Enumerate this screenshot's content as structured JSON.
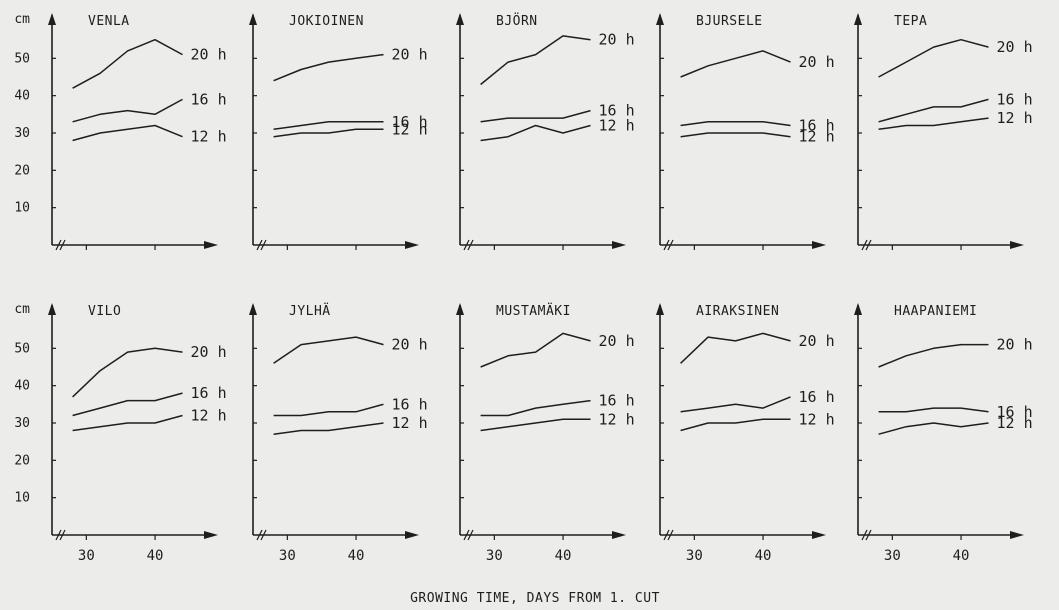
{
  "figure": {
    "xlabel": "GROWING TIME, DAYS FROM 1. CUT",
    "ylabel": "cm"
  },
  "chart_data": [
    {
      "type": "line",
      "title": "VENLA",
      "x": [
        28,
        32,
        36,
        40,
        44
      ],
      "ylim": [
        0,
        60
      ],
      "yticks": [
        10,
        20,
        30,
        40,
        50
      ],
      "xticks": [
        30,
        40
      ],
      "series": [
        {
          "name": "20 h",
          "values": [
            42,
            46,
            52,
            55,
            51
          ]
        },
        {
          "name": "16 h",
          "values": [
            33,
            35,
            36,
            35,
            39
          ]
        },
        {
          "name": "12 h",
          "values": [
            28,
            30,
            31,
            32,
            29
          ]
        }
      ]
    },
    {
      "type": "line",
      "title": "JOKIOINEN",
      "x": [
        28,
        32,
        36,
        40,
        44
      ],
      "ylim": [
        0,
        60
      ],
      "yticks": [
        10,
        20,
        30,
        40,
        50
      ],
      "xticks": [
        30,
        40
      ],
      "series": [
        {
          "name": "20 h",
          "values": [
            44,
            47,
            49,
            50,
            51
          ]
        },
        {
          "name": "16 h",
          "values": [
            31,
            32,
            33,
            33,
            33
          ]
        },
        {
          "name": "12 h",
          "values": [
            29,
            30,
            30,
            31,
            31
          ]
        }
      ]
    },
    {
      "type": "line",
      "title": "BJÖRN",
      "x": [
        28,
        32,
        36,
        40,
        44
      ],
      "ylim": [
        0,
        60
      ],
      "yticks": [
        10,
        20,
        30,
        40,
        50
      ],
      "xticks": [
        30,
        40
      ],
      "series": [
        {
          "name": "20 h",
          "values": [
            43,
            49,
            51,
            56,
            55
          ]
        },
        {
          "name": "16 h",
          "values": [
            33,
            34,
            34,
            34,
            36
          ]
        },
        {
          "name": "12 h",
          "values": [
            28,
            29,
            32,
            30,
            32
          ]
        }
      ]
    },
    {
      "type": "line",
      "title": "BJURSELE",
      "x": [
        28,
        32,
        36,
        40,
        44
      ],
      "ylim": [
        0,
        60
      ],
      "yticks": [
        10,
        20,
        30,
        40,
        50
      ],
      "xticks": [
        30,
        40
      ],
      "series": [
        {
          "name": "20 h",
          "values": [
            45,
            48,
            50,
            52,
            49
          ]
        },
        {
          "name": "16 h",
          "values": [
            32,
            33,
            33,
            33,
            32
          ]
        },
        {
          "name": "12 h",
          "values": [
            29,
            30,
            30,
            30,
            29
          ]
        }
      ]
    },
    {
      "type": "line",
      "title": "TEPA",
      "x": [
        28,
        32,
        36,
        40,
        44
      ],
      "ylim": [
        0,
        60
      ],
      "yticks": [
        10,
        20,
        30,
        40,
        50
      ],
      "xticks": [
        30,
        40
      ],
      "series": [
        {
          "name": "20 h",
          "values": [
            45,
            49,
            53,
            55,
            53
          ]
        },
        {
          "name": "16 h",
          "values": [
            33,
            35,
            37,
            37,
            39
          ]
        },
        {
          "name": "12 h",
          "values": [
            31,
            32,
            32,
            33,
            34
          ]
        }
      ]
    },
    {
      "type": "line",
      "title": "VILO",
      "x": [
        28,
        32,
        36,
        40,
        44
      ],
      "ylim": [
        0,
        60
      ],
      "yticks": [
        10,
        20,
        30,
        40,
        50
      ],
      "xticks": [
        30,
        40
      ],
      "series": [
        {
          "name": "20 h",
          "values": [
            37,
            44,
            49,
            50,
            49
          ]
        },
        {
          "name": "16 h",
          "values": [
            32,
            34,
            36,
            36,
            38
          ]
        },
        {
          "name": "12 h",
          "values": [
            28,
            29,
            30,
            30,
            32
          ]
        }
      ]
    },
    {
      "type": "line",
      "title": "JYLHÄ",
      "x": [
        28,
        32,
        36,
        40,
        44
      ],
      "ylim": [
        0,
        60
      ],
      "yticks": [
        10,
        20,
        30,
        40,
        50
      ],
      "xticks": [
        30,
        40
      ],
      "series": [
        {
          "name": "20 h",
          "values": [
            46,
            51,
            52,
            53,
            51
          ]
        },
        {
          "name": "16 h",
          "values": [
            32,
            32,
            33,
            33,
            35
          ]
        },
        {
          "name": "12 h",
          "values": [
            27,
            28,
            28,
            29,
            30
          ]
        }
      ]
    },
    {
      "type": "line",
      "title": "MUSTAMÄKI",
      "x": [
        28,
        32,
        36,
        40,
        44
      ],
      "ylim": [
        0,
        60
      ],
      "yticks": [
        10,
        20,
        30,
        40,
        50
      ],
      "xticks": [
        30,
        40
      ],
      "series": [
        {
          "name": "20 h",
          "values": [
            45,
            48,
            49,
            54,
            52
          ]
        },
        {
          "name": "16 h",
          "values": [
            32,
            32,
            34,
            35,
            36
          ]
        },
        {
          "name": "12 h",
          "values": [
            28,
            29,
            30,
            31,
            31
          ]
        }
      ]
    },
    {
      "type": "line",
      "title": "AIRAKSINEN",
      "x": [
        28,
        32,
        36,
        40,
        44
      ],
      "ylim": [
        0,
        60
      ],
      "yticks": [
        10,
        20,
        30,
        40,
        50
      ],
      "xticks": [
        30,
        40
      ],
      "series": [
        {
          "name": "20 h",
          "values": [
            46,
            53,
            52,
            54,
            52
          ]
        },
        {
          "name": "16 h",
          "values": [
            33,
            34,
            35,
            34,
            37
          ]
        },
        {
          "name": "12 h",
          "values": [
            28,
            30,
            30,
            31,
            31
          ]
        }
      ]
    },
    {
      "type": "line",
      "title": "HAAPANIEMI",
      "x": [
        28,
        32,
        36,
        40,
        44
      ],
      "ylim": [
        0,
        60
      ],
      "yticks": [
        10,
        20,
        30,
        40,
        50
      ],
      "xticks": [
        30,
        40
      ],
      "series": [
        {
          "name": "20 h",
          "values": [
            45,
            48,
            50,
            51,
            51
          ]
        },
        {
          "name": "16 h",
          "values": [
            33,
            33,
            34,
            34,
            33
          ]
        },
        {
          "name": "12 h",
          "values": [
            27,
            29,
            30,
            29,
            30
          ]
        }
      ]
    }
  ]
}
